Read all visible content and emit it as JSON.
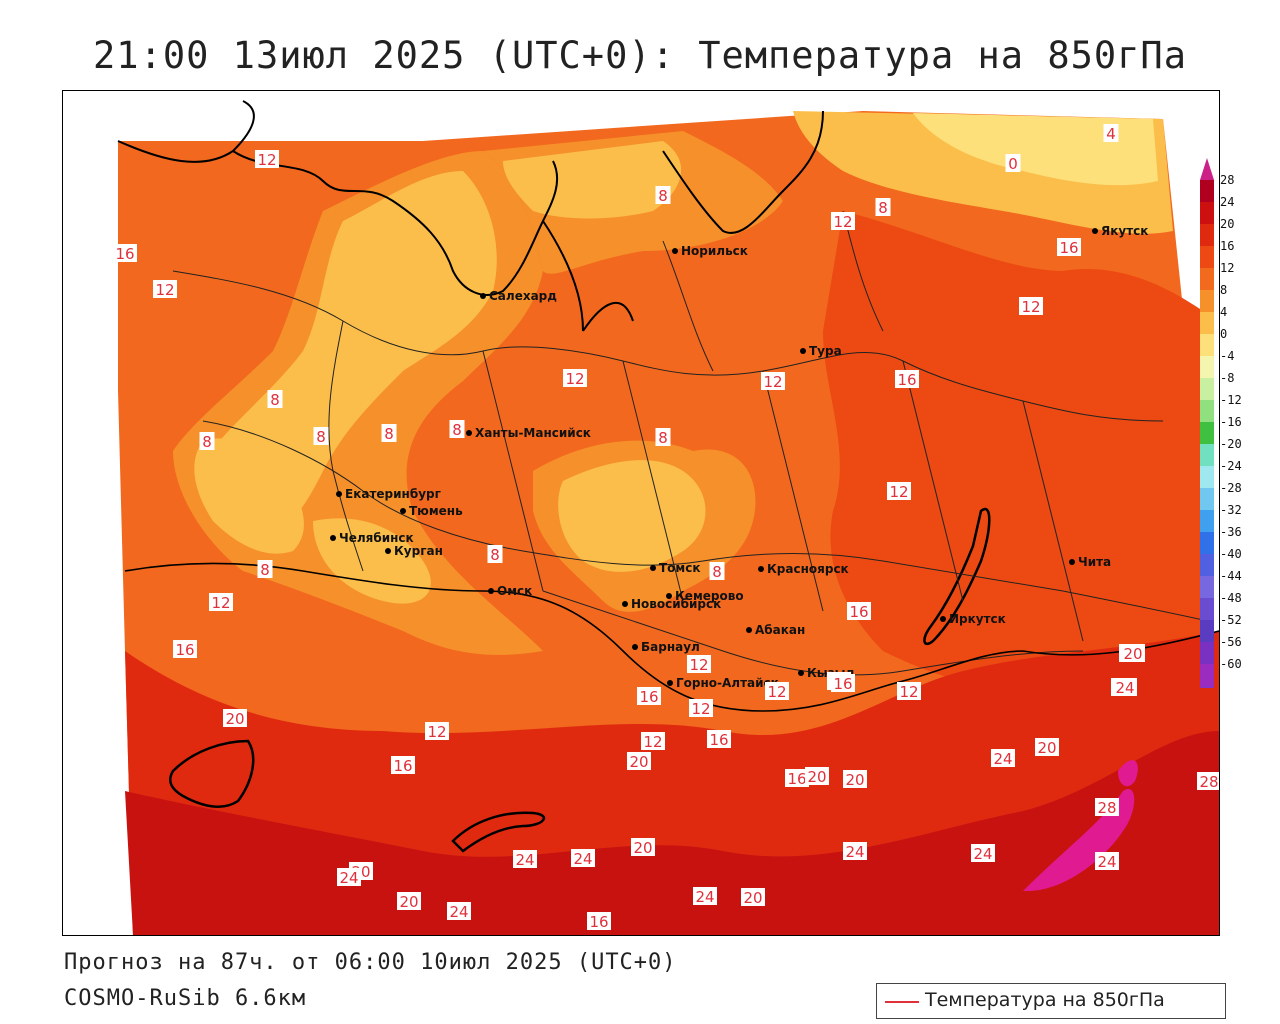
{
  "title": "21:00 13июл 2025 (UTC+0): Температура на 850гПа",
  "forecast_line": "Прогноз на 87ч. от 06:00 10июл 2025 (UTC+0)",
  "model_line": "COSMO-RuSib 6.6км",
  "legend": {
    "series": "Температура на 850гПа",
    "line_color": "#e0303a"
  },
  "colorbar": {
    "labels": [
      "28",
      "24",
      "20",
      "16",
      "12",
      "8",
      "4",
      "0",
      "-4",
      "-8",
      "-12",
      "-16",
      "-20",
      "-24",
      "-28",
      "-32",
      "-36",
      "-40",
      "-44",
      "-48",
      "-52",
      "-56",
      "-60"
    ],
    "colors": [
      "#b00020",
      "#cc1010",
      "#e02a10",
      "#ec4a12",
      "#f26a1e",
      "#f6902a",
      "#fbbe4a",
      "#fde07a",
      "#f4f6b0",
      "#c9f0a0",
      "#90e080",
      "#40c040",
      "#70e0c0",
      "#a0e8f0",
      "#70c8f0",
      "#40a0f0",
      "#3070e8",
      "#5060e0",
      "#7868e0",
      "#6a4cd0",
      "#5a3cc0",
      "#7a30c0",
      "#9a2cc0"
    ],
    "top_cap_color": "#cc2288",
    "bottom_cap_color": "#8833cc"
  },
  "cities": [
    {
      "name": "Норильск"
    },
    {
      "name": "Салехард"
    },
    {
      "name": "Тура"
    },
    {
      "name": "Якутск"
    },
    {
      "name": "Ханты-Мансийск"
    },
    {
      "name": "Екатеринбург"
    },
    {
      "name": "Тюмень"
    },
    {
      "name": "Челябинск"
    },
    {
      "name": "Курган"
    },
    {
      "name": "Омск"
    },
    {
      "name": "Томск"
    },
    {
      "name": "Новосибирск"
    },
    {
      "name": "Кемерово"
    },
    {
      "name": "Красноярск"
    },
    {
      "name": "Барнаул"
    },
    {
      "name": "Абакан"
    },
    {
      "name": "Горно-Алтайск"
    },
    {
      "name": "Кызыл"
    },
    {
      "name": "Иркутск"
    },
    {
      "name": "Чита"
    }
  ],
  "contour_labels": [
    "12",
    "8",
    "0",
    "4",
    "16",
    "12",
    "8",
    "12",
    "12",
    "16",
    "12",
    "8",
    "12",
    "16",
    "8",
    "8",
    "8",
    "8",
    "8",
    "12",
    "8",
    "12",
    "8",
    "8",
    "12",
    "16",
    "16",
    "12",
    "16",
    "20",
    "24",
    "12",
    "12",
    "20",
    "12",
    "16",
    "12",
    "20",
    "16",
    "20",
    "20",
    "24",
    "24",
    "20",
    "24",
    "20",
    "24",
    "24",
    "24",
    "16",
    "20",
    "24",
    "20",
    "24",
    "28",
    "24",
    "28",
    "20",
    "12",
    "16",
    "24",
    "20",
    "16"
  ]
}
